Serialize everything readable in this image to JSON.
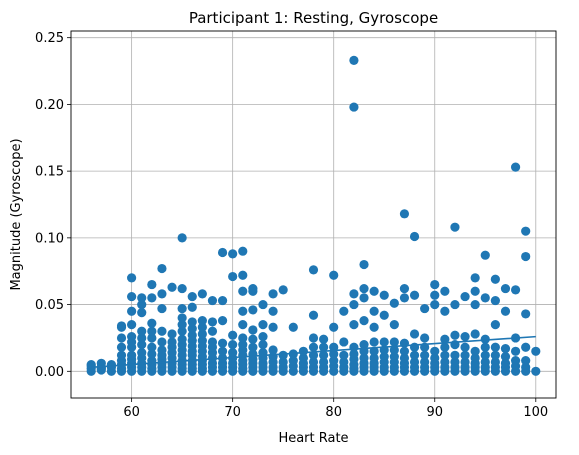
{
  "chart_data": {
    "type": "scatter",
    "title": "Participant 1: Resting, Gyroscope",
    "xlabel": "Heart Rate",
    "ylabel": "Magnitude (Gyroscope)",
    "xlim": [
      54,
      102
    ],
    "ylim": [
      -0.02,
      0.255
    ],
    "xticks": [
      60,
      70,
      80,
      90,
      100
    ],
    "xtick_labels": [
      "60",
      "70",
      "80",
      "90",
      "100"
    ],
    "yticks": [
      0.0,
      0.05,
      0.1,
      0.15,
      0.2,
      0.25
    ],
    "ytick_labels": [
      "0.00",
      "0.05",
      "0.10",
      "0.15",
      "0.20",
      "0.25"
    ],
    "grid": true,
    "marker_color": "#1f77b4",
    "trendline": {
      "x": [
        56,
        100
      ],
      "y": [
        0.003,
        0.026
      ]
    },
    "series": [
      {
        "x": [
          56,
          56,
          56,
          56,
          57,
          57,
          57,
          57,
          58,
          58,
          58,
          59,
          59,
          59,
          59,
          59,
          59,
          59,
          59,
          59,
          60,
          60,
          60,
          60,
          60,
          60,
          60,
          60,
          60,
          60,
          60,
          60,
          61,
          61,
          61,
          61,
          61,
          61,
          61,
          61,
          61,
          61,
          61,
          62,
          62,
          62,
          62,
          62,
          62,
          62,
          62,
          62,
          62,
          62,
          63,
          63,
          63,
          63,
          63,
          63,
          63,
          63,
          63,
          63,
          63,
          64,
          64,
          64,
          64,
          64,
          64,
          64,
          64,
          64,
          65,
          65,
          65,
          65,
          65,
          65,
          65,
          65,
          65,
          65,
          65,
          65,
          65,
          65,
          66,
          66,
          66,
          66,
          66,
          66,
          66,
          66,
          66,
          66,
          66,
          66,
          66,
          67,
          67,
          67,
          67,
          67,
          67,
          67,
          67,
          67,
          67,
          67,
          67,
          68,
          68,
          68,
          68,
          68,
          68,
          68,
          68,
          68,
          68,
          69,
          69,
          69,
          69,
          69,
          69,
          69,
          69,
          69,
          70,
          70,
          70,
          70,
          70,
          70,
          70,
          70,
          70,
          71,
          71,
          71,
          71,
          71,
          71,
          71,
          71,
          71,
          71,
          71,
          71,
          71,
          72,
          72,
          72,
          72,
          72,
          72,
          72,
          72,
          72,
          72,
          72,
          73,
          73,
          73,
          73,
          73,
          73,
          73,
          73,
          73,
          74,
          74,
          74,
          74,
          74,
          74,
          74,
          74,
          75,
          75,
          75,
          75,
          75,
          76,
          76,
          76,
          76,
          76,
          77,
          77,
          77,
          77,
          77,
          78,
          78,
          78,
          78,
          78,
          78,
          78,
          78,
          79,
          79,
          79,
          79,
          79,
          79,
          80,
          80,
          80,
          80,
          80,
          80,
          80,
          81,
          81,
          81,
          81,
          81,
          81,
          82,
          82,
          82,
          82,
          82,
          82,
          82,
          82,
          82,
          82,
          82,
          83,
          83,
          83,
          83,
          83,
          83,
          83,
          83,
          83,
          83,
          84,
          84,
          84,
          84,
          84,
          84,
          84,
          84,
          84,
          85,
          85,
          85,
          85,
          85,
          85,
          85,
          85,
          86,
          86,
          86,
          86,
          86,
          86,
          86,
          86,
          87,
          87,
          87,
          87,
          87,
          87,
          87,
          87,
          87,
          88,
          88,
          88,
          88,
          88,
          88,
          88,
          88,
          89,
          89,
          89,
          89,
          89,
          89,
          89,
          90,
          90,
          90,
          90,
          90,
          90,
          90,
          90,
          91,
          91,
          91,
          91,
          91,
          91,
          91,
          91,
          92,
          92,
          92,
          92,
          92,
          92,
          92,
          92,
          93,
          93,
          93,
          93,
          93,
          93,
          93,
          94,
          94,
          94,
          94,
          94,
          94,
          94,
          94,
          94,
          95,
          95,
          95,
          95,
          95,
          95,
          95,
          95,
          96,
          96,
          96,
          96,
          96,
          96,
          96,
          96,
          97,
          97,
          97,
          97,
          97,
          97,
          97,
          98,
          98,
          98,
          98,
          98,
          98,
          98,
          99,
          99,
          99,
          99,
          99,
          99,
          99,
          100,
          100
        ],
        "y": [
          0.0,
          0.002,
          0.004,
          0.005,
          0.001,
          0.003,
          0.006,
          0.002,
          0.0,
          0.003,
          0.005,
          0.0,
          0.002,
          0.005,
          0.008,
          0.012,
          0.018,
          0.025,
          0.033,
          0.034,
          0.0,
          0.003,
          0.006,
          0.009,
          0.012,
          0.018,
          0.022,
          0.026,
          0.035,
          0.045,
          0.056,
          0.07,
          0.0,
          0.003,
          0.006,
          0.01,
          0.014,
          0.02,
          0.025,
          0.03,
          0.044,
          0.05,
          0.055,
          0.0,
          0.002,
          0.005,
          0.008,
          0.013,
          0.018,
          0.025,
          0.03,
          0.036,
          0.055,
          0.065,
          0.0,
          0.003,
          0.006,
          0.009,
          0.012,
          0.016,
          0.022,
          0.03,
          0.047,
          0.058,
          0.077,
          0.0,
          0.003,
          0.006,
          0.01,
          0.014,
          0.018,
          0.022,
          0.028,
          0.063,
          0.0,
          0.002,
          0.005,
          0.008,
          0.012,
          0.016,
          0.02,
          0.024,
          0.03,
          0.035,
          0.04,
          0.047,
          0.062,
          0.1,
          0.0,
          0.002,
          0.005,
          0.008,
          0.012,
          0.015,
          0.019,
          0.023,
          0.027,
          0.032,
          0.037,
          0.048,
          0.056,
          0.0,
          0.002,
          0.005,
          0.008,
          0.011,
          0.015,
          0.019,
          0.023,
          0.028,
          0.033,
          0.038,
          0.058,
          0.0,
          0.003,
          0.006,
          0.01,
          0.014,
          0.018,
          0.022,
          0.03,
          0.037,
          0.053,
          0.0,
          0.003,
          0.006,
          0.01,
          0.015,
          0.021,
          0.038,
          0.053,
          0.089,
          0.0,
          0.003,
          0.006,
          0.01,
          0.014,
          0.02,
          0.027,
          0.071,
          0.088,
          0.0,
          0.002,
          0.005,
          0.008,
          0.012,
          0.016,
          0.02,
          0.025,
          0.035,
          0.045,
          0.06,
          0.072,
          0.09,
          0.0,
          0.003,
          0.006,
          0.009,
          0.013,
          0.018,
          0.024,
          0.031,
          0.046,
          0.06,
          0.062,
          0.0,
          0.003,
          0.006,
          0.01,
          0.014,
          0.02,
          0.026,
          0.035,
          0.05,
          0.0,
          0.003,
          0.007,
          0.011,
          0.016,
          0.033,
          0.045,
          0.058,
          0.0,
          0.003,
          0.007,
          0.012,
          0.061,
          0.0,
          0.004,
          0.008,
          0.013,
          0.033,
          0.0,
          0.003,
          0.006,
          0.01,
          0.015,
          0.0,
          0.003,
          0.007,
          0.012,
          0.018,
          0.025,
          0.042,
          0.076,
          0.0,
          0.003,
          0.007,
          0.012,
          0.018,
          0.024,
          0.0,
          0.004,
          0.008,
          0.013,
          0.018,
          0.033,
          0.072,
          0.0,
          0.003,
          0.007,
          0.012,
          0.022,
          0.045,
          0.0,
          0.002,
          0.005,
          0.009,
          0.013,
          0.018,
          0.035,
          0.05,
          0.058,
          0.198,
          0.233,
          0.0,
          0.003,
          0.006,
          0.01,
          0.015,
          0.02,
          0.038,
          0.055,
          0.062,
          0.08,
          0.0,
          0.003,
          0.006,
          0.01,
          0.015,
          0.022,
          0.033,
          0.045,
          0.06,
          0.0,
          0.003,
          0.007,
          0.011,
          0.016,
          0.022,
          0.042,
          0.057,
          0.0,
          0.003,
          0.007,
          0.011,
          0.016,
          0.022,
          0.035,
          0.051,
          0.0,
          0.003,
          0.006,
          0.01,
          0.015,
          0.021,
          0.055,
          0.062,
          0.118,
          0.0,
          0.003,
          0.007,
          0.012,
          0.018,
          0.028,
          0.057,
          0.101,
          0.0,
          0.003,
          0.007,
          0.012,
          0.018,
          0.025,
          0.047,
          0.0,
          0.003,
          0.006,
          0.01,
          0.015,
          0.05,
          0.057,
          0.065,
          0.0,
          0.003,
          0.007,
          0.012,
          0.018,
          0.024,
          0.045,
          0.06,
          0.0,
          0.003,
          0.007,
          0.012,
          0.02,
          0.027,
          0.05,
          0.108,
          0.0,
          0.003,
          0.007,
          0.012,
          0.018,
          0.026,
          0.056,
          0.0,
          0.003,
          0.006,
          0.01,
          0.015,
          0.028,
          0.05,
          0.06,
          0.07,
          0.0,
          0.003,
          0.007,
          0.012,
          0.018,
          0.024,
          0.055,
          0.087,
          0.0,
          0.003,
          0.007,
          0.012,
          0.018,
          0.035,
          0.053,
          0.069,
          0.0,
          0.003,
          0.006,
          0.011,
          0.017,
          0.045,
          0.062,
          0.0,
          0.004,
          0.008,
          0.015,
          0.025,
          0.061,
          0.153,
          0.0,
          0.003,
          0.008,
          0.018,
          0.043,
          0.086,
          0.105,
          0.0,
          0.015
        ]
      }
    ]
  }
}
